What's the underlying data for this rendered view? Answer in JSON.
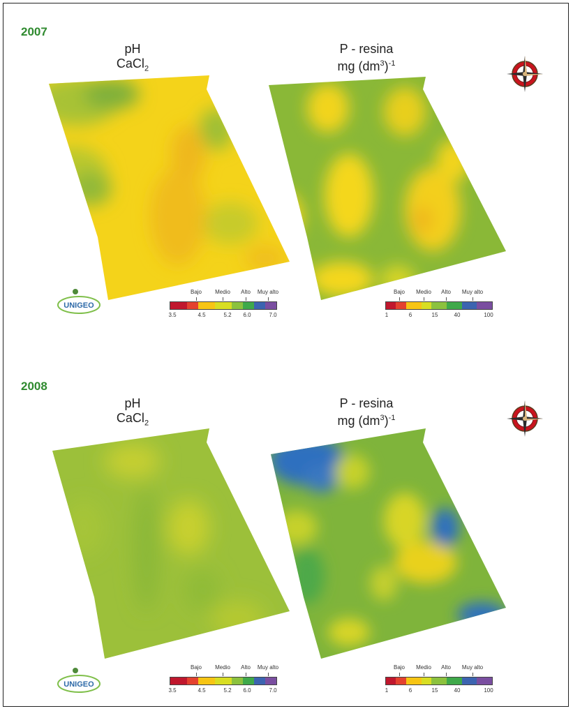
{
  "panels": [
    {
      "year": "2007",
      "ph_title": [
        "pH",
        "CaCl",
        "2"
      ],
      "p_title": [
        "P - resina",
        "mg (dm",
        "3",
        ")",
        "-1"
      ],
      "ph_legend": {
        "classes": [
          "Bajo",
          "Medio",
          "Alto",
          "Muy alto"
        ],
        "values": [
          "3.5",
          "4.5",
          "5.2",
          "6.0",
          "7.0"
        ],
        "colors": [
          "#c0172d",
          "#e4422f",
          "#f7c514",
          "#d8de23",
          "#8cc23e",
          "#3fa94a",
          "#3c64b0",
          "#7a4ea0"
        ]
      },
      "p_legend": {
        "classes": [
          "Bajo",
          "Medio",
          "Alto",
          "Muy alto"
        ],
        "values": [
          "1",
          "6",
          "15",
          "40",
          "100"
        ],
        "colors": [
          "#c0172d",
          "#e4422f",
          "#f7c514",
          "#d8de23",
          "#8cc23e",
          "#3fa94a",
          "#3c64b0",
          "#7a4ea0"
        ]
      }
    },
    {
      "year": "2008",
      "ph_title": [
        "pH",
        "CaCl",
        "2"
      ],
      "p_title": [
        "P - resina",
        "mg (dm",
        "3",
        ")",
        "-1"
      ],
      "ph_legend": {
        "classes": [
          "Bajo",
          "Medio",
          "Alto",
          "Muy alto"
        ],
        "values": [
          "3.5",
          "4.5",
          "5.2",
          "6.0",
          "7.0"
        ],
        "colors": [
          "#c0172d",
          "#e4422f",
          "#f7c514",
          "#d8de23",
          "#8cc23e",
          "#3fa94a",
          "#3c64b0",
          "#7a4ea0"
        ]
      },
      "p_legend": {
        "classes": [
          "Bajo",
          "Medio",
          "Alto",
          "Muy alto"
        ],
        "values": [
          "1",
          "6",
          "15",
          "40",
          "100"
        ],
        "colors": [
          "#c0172d",
          "#e4422f",
          "#f7c514",
          "#d8de23",
          "#8cc23e",
          "#3fa94a",
          "#3c64b0",
          "#7a4ea0"
        ]
      }
    }
  ],
  "logo_text": "UNIGEO",
  "colors": {
    "year_label": "#2f8a2f",
    "map_yellow": "#f2d21a",
    "map_green": "#8ab837",
    "map_blue": "#2f6fbf"
  }
}
